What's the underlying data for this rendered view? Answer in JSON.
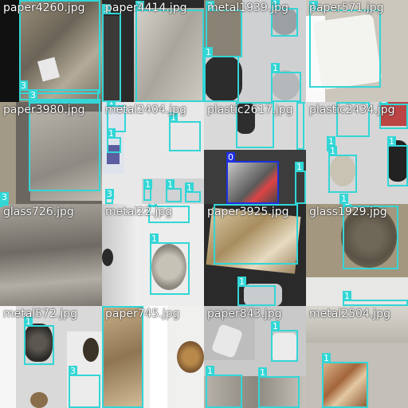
{
  "palette": {
    "class1": "#33d6d6",
    "class0": "#1f2fe0",
    "class3": "#33d6d6"
  },
  "tiles": [
    {
      "title": "paper4260.jpg",
      "boxes": [
        {
          "cls": "3"
        },
        {
          "cls": "3"
        },
        {
          "cls": "3"
        }
      ]
    },
    {
      "title": "paper4414.jpg",
      "boxes": [
        {
          "cls": "3"
        },
        {
          "cls": "3"
        }
      ]
    },
    {
      "title": "metal1939.jpg",
      "boxes": [
        {
          "cls": "3"
        },
        {
          "cls": "1"
        },
        {
          "cls": "1"
        },
        {
          "cls": "1"
        }
      ]
    },
    {
      "title": "paper571.jpg",
      "boxes": [
        {
          "cls": "1"
        }
      ]
    },
    {
      "title": "paper3980.jpg",
      "boxes": [
        {
          "cls": "3"
        },
        {
          "cls": "3"
        }
      ]
    },
    {
      "title": "metal2404.jpg",
      "boxes": [
        {
          "cls": "1"
        },
        {
          "cls": "1"
        },
        {
          "cls": "1"
        },
        {
          "cls": "1"
        },
        {
          "cls": "1"
        },
        {
          "cls": "1"
        },
        {
          "cls": "3"
        }
      ]
    },
    {
      "title": "plastic2617.jpg",
      "boxes": [
        {
          "cls": "1"
        },
        {
          "cls": "1"
        },
        {
          "cls": "0"
        },
        {
          "cls": "1"
        }
      ]
    },
    {
      "title": "plastic2434.jpg",
      "boxes": [
        {
          "cls": "1"
        },
        {
          "cls": "1"
        },
        {
          "cls": "1"
        },
        {
          "cls": "1"
        },
        {
          "cls": "1"
        },
        {
          "cls": "1"
        }
      ]
    },
    {
      "title": "glass726.jpg",
      "boxes": [
        {
          "cls": "3"
        }
      ]
    },
    {
      "title": "metal22.jpg",
      "boxes": [
        {
          "cls": "1"
        },
        {
          "cls": "1"
        }
      ]
    },
    {
      "title": "paper3925.jpg",
      "boxes": [
        {
          "cls": "1"
        },
        {
          "cls": "1"
        }
      ]
    },
    {
      "title": "glass1929.jpg",
      "boxes": [
        {
          "cls": "1"
        },
        {
          "cls": "1"
        }
      ]
    },
    {
      "title": "metal572.jpg",
      "boxes": [
        {
          "cls": "1"
        },
        {
          "cls": "3"
        }
      ]
    },
    {
      "title": "paper745.jpg",
      "boxes": [
        {
          "cls": "3"
        }
      ]
    },
    {
      "title": "paper843.jpg",
      "boxes": [
        {
          "cls": "1"
        },
        {
          "cls": "1"
        },
        {
          "cls": "1"
        }
      ]
    },
    {
      "title": "metal2504.jpg",
      "boxes": [
        {
          "cls": "1"
        }
      ]
    }
  ]
}
